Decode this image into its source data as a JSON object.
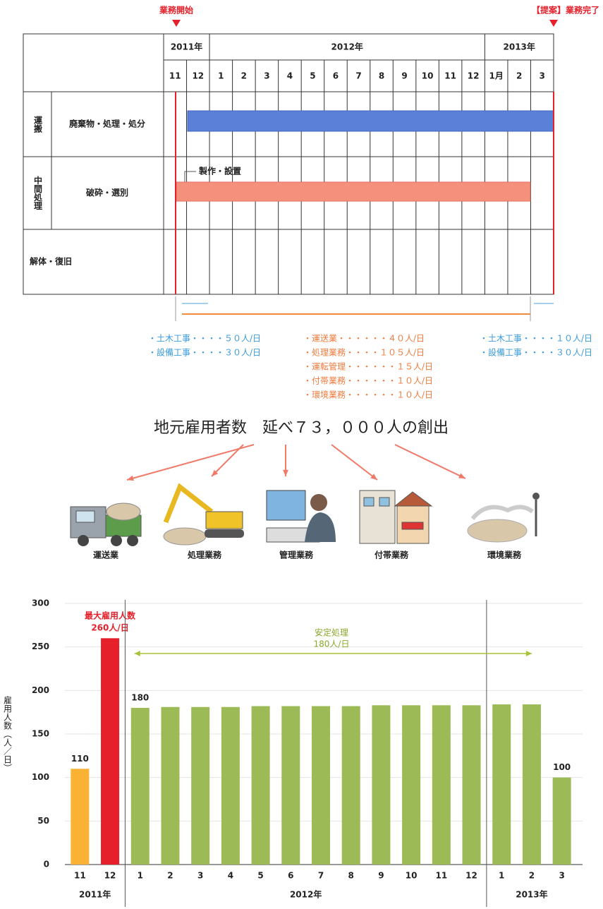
{
  "gantt": {
    "markers": {
      "start": "業務開始",
      "end": "【提案】業務完了"
    },
    "years": [
      "2011年",
      "2012年",
      "2013年"
    ],
    "months": [
      "11",
      "12",
      "1",
      "2",
      "3",
      "4",
      "5",
      "6",
      "7",
      "8",
      "9",
      "10",
      "11",
      "12",
      "1月",
      "2",
      "3"
    ],
    "rows": [
      {
        "group": "運搬",
        "task": "廃棄物・処理・処分"
      },
      {
        "group": "中間処理",
        "task": "破砕・選別",
        "note": "製作・設置"
      },
      {
        "task": "解体・復旧"
      }
    ]
  },
  "staffing": {
    "before": [
      "・土木工事・・・・５０人/日",
      "・設備工事・・・・３０人/日"
    ],
    "during": [
      "・運送業・・・・・・４０人/日",
      "・処理業務・・・・１０５人/日",
      "・運転管理・・・・・・１５人/日",
      "・付帯業務・・・・・・１０人/日",
      "・環境業務・・・・・・１０人/日"
    ],
    "after": [
      "・土木工事・・・・１０人/日",
      "・設備工事・・・・３０人/日"
    ]
  },
  "headline": "地元雇用者数　延べ７３，０００人の創出",
  "jobs": [
    "運送業",
    "処理業務",
    "管理業務",
    "付帯業務",
    "環境業務"
  ],
  "chart_data": {
    "type": "bar",
    "y_label": "雇用人数（人／日）",
    "categories": [
      "11",
      "12",
      "1",
      "2",
      "3",
      "4",
      "5",
      "6",
      "7",
      "8",
      "9",
      "10",
      "11",
      "12",
      "1",
      "2",
      "3"
    ],
    "values": [
      110,
      260,
      180,
      181,
      181,
      181,
      182,
      182,
      182,
      182,
      183,
      183,
      183,
      183,
      184,
      184,
      100
    ],
    "value_labels": [
      "110",
      "260人/日",
      "180",
      null,
      null,
      null,
      null,
      null,
      null,
      null,
      null,
      null,
      null,
      null,
      null,
      null,
      "100"
    ],
    "colors": [
      "#f9b233",
      "#e5202a",
      "#9cbb57",
      "#9cbb57",
      "#9cbb57",
      "#9cbb57",
      "#9cbb57",
      "#9cbb57",
      "#9cbb57",
      "#9cbb57",
      "#9cbb57",
      "#9cbb57",
      "#9cbb57",
      "#9cbb57",
      "#9cbb57",
      "#9cbb57",
      "#9cbb57"
    ],
    "x_groups": [
      "2011年",
      "2012年",
      "2013年"
    ],
    "annotations": {
      "peak": "最大雇用人数",
      "stable": "安定処理",
      "stable_value": "180人/日"
    },
    "ylim": [
      0,
      300
    ],
    "yticks": [
      0,
      50,
      100,
      150,
      200,
      250,
      300
    ],
    "grid": true
  }
}
